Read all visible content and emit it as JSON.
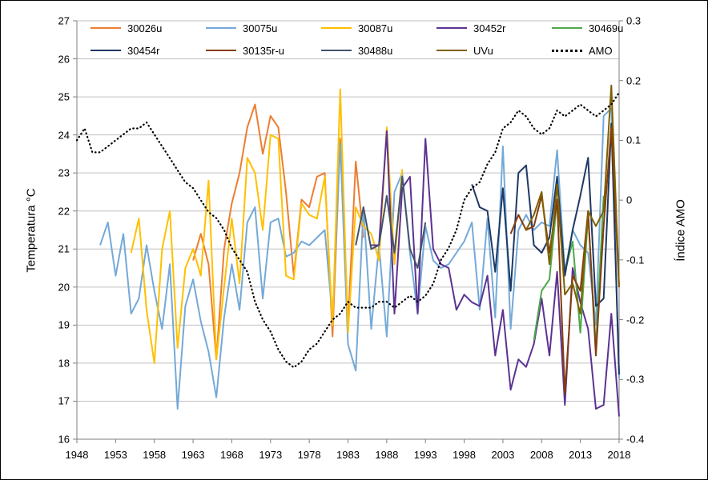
{
  "chart_data": {
    "type": "line",
    "title": "",
    "grid": "horizontal",
    "legend_position": "top-inside",
    "axes": {
      "left": {
        "title": "Temperatura °C",
        "min": 16,
        "max": 27,
        "step": 1,
        "ticks": [
          16,
          17,
          18,
          19,
          20,
          21,
          22,
          23,
          24,
          25,
          26,
          27
        ]
      },
      "right": {
        "title": "Índice AMO",
        "min": -0.4,
        "max": 0.3,
        "step": 0.1,
        "ticks": [
          "0.3",
          "0.2",
          "0.1",
          "0",
          "-0.1",
          "-0.2",
          "-0.3",
          "-0.4"
        ]
      },
      "x": {
        "min": 1948,
        "max": 2018,
        "step": 5,
        "ticks": [
          1948,
          1953,
          1958,
          1963,
          1968,
          1973,
          1978,
          1983,
          1988,
          1993,
          1998,
          2003,
          2008,
          2013,
          2018
        ]
      }
    },
    "series": [
      {
        "name": "30026u",
        "color": "#ED7D31",
        "axis": "left",
        "start": 1963,
        "values": [
          20.7,
          21.4,
          20.6,
          18.1,
          21.0,
          22.2,
          23.0,
          24.2,
          24.8,
          23.5,
          24.5,
          24.2,
          22.5,
          20.3,
          22.3,
          22.1,
          22.9,
          23.0,
          18.7,
          23.9,
          19.0,
          23.3,
          21.3
        ]
      },
      {
        "name": "30075u",
        "color": "#74A9D8",
        "axis": "left",
        "start": 1951,
        "values": [
          21.1,
          21.7,
          20.3,
          21.4,
          19.3,
          19.7,
          21.1,
          19.9,
          18.9,
          20.6,
          16.8,
          19.5,
          20.2,
          19.1,
          18.3,
          17.1,
          19.2,
          20.6,
          19.4,
          21.7,
          22.1,
          19.7,
          21.7,
          21.8,
          20.8,
          20.9,
          21.2,
          21.1,
          21.3,
          21.5,
          19.2,
          23.8,
          18.5,
          17.8,
          22.1,
          18.9,
          21.1,
          18.7,
          22.5,
          23.0,
          20.9,
          19.3,
          21.6,
          20.7,
          20.5,
          20.6,
          20.9,
          21.2,
          21.7,
          19.4,
          21.8,
          19.2,
          23.7,
          18.9,
          21.5,
          21.9,
          21.5,
          21.7,
          21.6,
          23.6,
          20.4,
          21.5,
          21.1,
          20.9,
          19.0,
          24.5,
          24.7,
          17.6
        ]
      },
      {
        "name": "30087u",
        "color": "#FFC000",
        "axis": "left",
        "start": 1955,
        "values": [
          20.9,
          21.8,
          19.4,
          18.0,
          21.0,
          22.0,
          18.4,
          20.5,
          21.0,
          20.3,
          22.8,
          18.1,
          20.0,
          21.8,
          20.1,
          23.4,
          23.0,
          21.5,
          24.0,
          23.9,
          20.3,
          20.2,
          22.2,
          21.9,
          21.8,
          22.9,
          19.0,
          25.2,
          18.8,
          22.1,
          21.6,
          21.4,
          20.7,
          24.2,
          20.6,
          23.1
        ]
      },
      {
        "name": "30452r",
        "color": "#5C3292",
        "axis": "left",
        "start": 1986,
        "values": [
          21.1,
          21.1,
          24.1,
          19.3,
          22.6,
          22.9,
          19.3,
          23.9,
          21.0,
          20.6,
          20.5,
          19.4,
          19.8,
          19.6,
          19.5,
          20.3,
          18.2,
          19.4,
          17.3,
          18.1,
          17.9,
          18.5,
          19.7,
          18.2,
          20.4,
          16.9,
          20.5,
          19.6,
          18.9,
          16.8,
          16.9,
          19.3,
          16.6
        ]
      },
      {
        "name": "30469u",
        "color": "#4EA84A",
        "axis": "left",
        "start": 2007,
        "values": [
          18.6,
          19.9,
          20.2,
          22.3,
          20.4,
          21.2,
          18.8,
          21.9,
          18.4,
          22.4
        ]
      },
      {
        "name": "30454r",
        "color": "#1F3864",
        "axis": "left",
        "start": 1999,
        "values": [
          22.7,
          22.1,
          22.0,
          20.4,
          22.6,
          19.9,
          23.0,
          23.2,
          21.1,
          20.9,
          21.3,
          22.9,
          20.3,
          21.5,
          22.4,
          23.4,
          19.5,
          19.7,
          24.3,
          17.7
        ]
      },
      {
        "name": "30135r-u",
        "color": "#843C0C",
        "axis": "left",
        "start": 2004,
        "values": [
          21.4,
          21.9,
          21.5,
          21.6,
          22.4,
          20.9,
          22.3,
          17.2,
          20.3,
          19.9,
          22.0,
          18.2,
          21.6,
          24.2,
          20.0
        ]
      },
      {
        "name": "30488u",
        "color": "#44546A",
        "axis": "left",
        "start": 1984,
        "values": [
          21.1,
          22.1,
          21.0,
          21.1,
          22.4,
          20.9,
          22.9,
          21.0,
          20.5,
          21.7
        ]
      },
      {
        "name": "UVu",
        "color": "#7F6000",
        "axis": "left",
        "start": 2006,
        "values": [
          21.5,
          21.9,
          22.5,
          20.6,
          22.7,
          19.8,
          20.1,
          19.3,
          22.0,
          21.6,
          22.0,
          25.3,
          20.0
        ]
      },
      {
        "name": "AMO",
        "color": "#000000",
        "axis": "right",
        "dotted": true,
        "start": 1948,
        "values": [
          0.1,
          0.12,
          0.08,
          0.08,
          0.09,
          0.1,
          0.11,
          0.12,
          0.12,
          0.13,
          0.11,
          0.09,
          0.07,
          0.05,
          0.03,
          0.02,
          0.0,
          -0.02,
          -0.03,
          -0.05,
          -0.08,
          -0.1,
          -0.12,
          -0.17,
          -0.2,
          -0.22,
          -0.25,
          -0.27,
          -0.28,
          -0.27,
          -0.25,
          -0.24,
          -0.22,
          -0.2,
          -0.19,
          -0.17,
          -0.18,
          -0.18,
          -0.18,
          -0.17,
          -0.17,
          -0.18,
          -0.17,
          -0.16,
          -0.17,
          -0.16,
          -0.14,
          -0.1,
          -0.08,
          -0.05,
          0.0,
          0.02,
          0.03,
          0.06,
          0.08,
          0.12,
          0.13,
          0.15,
          0.14,
          0.12,
          0.11,
          0.12,
          0.15,
          0.14,
          0.15,
          0.16,
          0.15,
          0.14,
          0.15,
          0.16,
          0.18
        ]
      }
    ]
  },
  "style": {
    "grid_color": "#C0C0C0",
    "axis_color": "#7F7F7F",
    "background": "#FFFFFF"
  }
}
